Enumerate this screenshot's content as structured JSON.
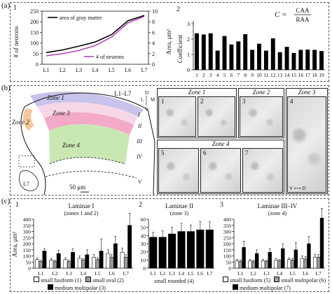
{
  "panels": {
    "a": "(a)",
    "b": "(b)",
    "c": "(c)"
  },
  "panel_a": {
    "sub1": "1",
    "sub2": "2",
    "formula_lhs": "C =",
    "formula_num": "CAA",
    "formula_den": "RAA"
  },
  "panel_b": {
    "levels": "L1–L7",
    "zones": [
      "Zone 1",
      "Zone 2",
      "Zone 3",
      "Zone 4"
    ],
    "left_zone2": "Zone 2",
    "laminae": [
      "I",
      "II",
      "III",
      "IV",
      "V"
    ],
    "l7": "L7",
    "scale": "50 μm",
    "compass": {
      "d": "D",
      "l": "L",
      "m": "M",
      "v": "V"
    },
    "micro_numbers": [
      "1",
      "2",
      "3",
      "4",
      "5",
      "6",
      "7"
    ],
    "zone4_axes": "V ⟷ D"
  },
  "panel_c": {
    "sub_numbers": [
      "1",
      "2",
      "3"
    ],
    "titles": [
      "Laminae I",
      "Laminae II",
      "Laminae III–IV"
    ],
    "subtitles": [
      "(zones 1 and 2)",
      "(zone 3)",
      "(zone 4)"
    ],
    "legend": {
      "small_fusiform_1": "small fusiform (1)",
      "small_oval_2": "small oval (2)",
      "medium_multipolar_3": "medium multipolar (3)",
      "small_rounded_4": "small rounded (4)",
      "small_fusiform_5": "small fusiform (5)",
      "small_multipolar_6": "small multipolar (6)",
      "medium_multipolar_7": "medium multipolar (7)"
    }
  },
  "chart_data": [
    {
      "type": "line",
      "x": [
        "L1",
        "L2",
        "L3",
        "L4",
        "L5",
        "L6",
        "L7"
      ],
      "ylabel": "# of neurons",
      "ylabel_right": "Area, μm²",
      "ylim": [
        0,
        250
      ],
      "ylim_right": [
        0,
        10
      ],
      "yticks": [
        0,
        50,
        100,
        150,
        200,
        250
      ],
      "yticks_right": [
        0,
        2,
        4,
        6,
        8,
        10
      ],
      "series": [
        {
          "name": "area of gray matter",
          "axis": "right",
          "color": "#000000",
          "values": [
            2.2,
            2.7,
            3.4,
            4.2,
            5.6,
            8.2,
            9.2
          ]
        },
        {
          "name": "# of neurons",
          "axis": "left",
          "color": "#b24bb5",
          "values": [
            40,
            50,
            65,
            88,
            128,
            195,
            225
          ]
        }
      ]
    },
    {
      "type": "bar",
      "categories": [
        "1",
        "2",
        "3",
        "4",
        "5",
        "6",
        "7",
        "8",
        "9",
        "10",
        "11",
        "12",
        "13",
        "14",
        "15",
        "16",
        "17",
        "18",
        "19"
      ],
      "values": [
        2.38,
        2.3,
        2.38,
        1.25,
        2.2,
        1.65,
        1.85,
        2.32,
        1.3,
        1.7,
        1.25,
        2.05,
        1.15,
        1.5,
        1.1,
        1.3,
        1.32,
        1.3,
        1.22
      ],
      "ylabel": "Coefficient",
      "ylim": [
        0,
        3
      ],
      "yticks": [
        0,
        1,
        2,
        3
      ]
    },
    {
      "type": "bar",
      "categories": [
        "L1",
        "L2",
        "L3",
        "L4",
        "L5",
        "L6",
        "L7"
      ],
      "ylabel": "Area, μm²",
      "ylim": [
        0,
        400
      ],
      "yticks": [
        0,
        50,
        100,
        150,
        200,
        250,
        300,
        350,
        400
      ],
      "series": [
        {
          "name": "small fusiform (1)",
          "color": "#ffffff",
          "values": [
            70,
            65,
            70,
            80,
            90,
            120,
            130
          ],
          "errors": [
            15,
            15,
            15,
            20,
            20,
            30,
            35
          ]
        },
        {
          "name": "small oval (2)",
          "color": "#9a9a9a",
          "values": [
            55,
            55,
            55,
            65,
            70,
            90,
            90
          ],
          "errors": [
            10,
            10,
            10,
            12,
            15,
            20,
            20
          ]
        },
        {
          "name": "medium multipolar (3)",
          "color": "#000000",
          "values": [
            140,
            120,
            130,
            110,
            140,
            200,
            350
          ],
          "errors": [
            20,
            25,
            30,
            40,
            100,
            60,
            100
          ]
        }
      ]
    },
    {
      "type": "bar",
      "categories": [
        "L1",
        "L2",
        "L3",
        "L4",
        "L5",
        "L6",
        "L7"
      ],
      "ylabel": "",
      "ylim": [
        0,
        60
      ],
      "yticks": [
        0,
        10,
        20,
        30,
        40,
        50,
        60
      ],
      "series": [
        {
          "name": "small rounded (4)",
          "color": "#000000",
          "values": [
            38,
            38,
            42,
            45,
            45,
            47,
            47
          ],
          "errors": [
            6,
            8,
            8,
            10,
            8,
            10,
            10
          ]
        }
      ]
    },
    {
      "type": "bar",
      "categories": [
        "L1",
        "L2",
        "L3",
        "L4",
        "L5",
        "L6",
        "L7"
      ],
      "ylabel": "",
      "ylim": [
        0,
        400
      ],
      "yticks": [
        0,
        50,
        100,
        150,
        200,
        250,
        300,
        350,
        400
      ],
      "series": [
        {
          "name": "small fusiform (5)",
          "color": "#ffffff",
          "values": [
            60,
            60,
            60,
            65,
            70,
            80,
            90
          ],
          "errors": [
            12,
            12,
            12,
            15,
            15,
            20,
            25
          ]
        },
        {
          "name": "small multipolar (6)",
          "color": "#9a9a9a",
          "values": [
            55,
            55,
            55,
            60,
            65,
            75,
            90
          ],
          "errors": [
            10,
            10,
            10,
            12,
            15,
            20,
            20
          ]
        },
        {
          "name": "medium multipolar (7)",
          "color": "#000000",
          "values": [
            170,
            120,
            130,
            160,
            150,
            200,
            410
          ],
          "errors": [
            50,
            30,
            30,
            40,
            60,
            60,
            80
          ]
        }
      ]
    }
  ]
}
